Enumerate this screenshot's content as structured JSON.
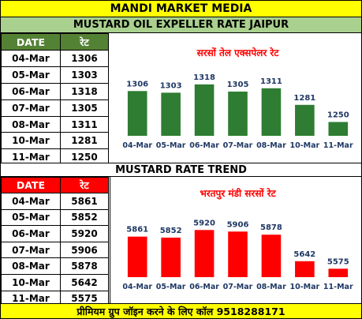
{
  "header": {
    "title": "MANDI MARKET MEDIA"
  },
  "section1": {
    "heading": "MUSTARD OIL EXPELLER RATE JAIPUR",
    "table": {
      "col_date": "DATE",
      "col_rate": "रेट",
      "rows": [
        {
          "date": "04-Mar",
          "rate": "1306"
        },
        {
          "date": "05-Mar",
          "rate": "1303"
        },
        {
          "date": "06-Mar",
          "rate": "1318"
        },
        {
          "date": "07-Mar",
          "rate": "1305"
        },
        {
          "date": "08-Mar",
          "rate": "1311"
        },
        {
          "date": "10-Mar",
          "rate": "1281"
        },
        {
          "date": "11-Mar",
          "rate": "1250"
        }
      ]
    }
  },
  "section2": {
    "heading": "MUSTARD RATE TREND",
    "table": {
      "col_date": "DATE",
      "col_rate": "रेट",
      "rows": [
        {
          "date": "04-Mar",
          "rate": "5861"
        },
        {
          "date": "05-Mar",
          "rate": "5852"
        },
        {
          "date": "06-Mar",
          "rate": "5920"
        },
        {
          "date": "07-Mar",
          "rate": "5906"
        },
        {
          "date": "08-Mar",
          "rate": "5878"
        },
        {
          "date": "10-Mar",
          "rate": "5642"
        },
        {
          "date": "11-Mar",
          "rate": "5575"
        }
      ]
    }
  },
  "footer": {
    "text": "प्रीमियम ग्रुप जॉइन करने के लिए कॉल 9518288171"
  },
  "chart_data": [
    {
      "type": "bar",
      "title": "सरसों तेल एक्सपेलर रेट",
      "categories": [
        "04-Mar",
        "05-Mar",
        "06-Mar",
        "07-Mar",
        "08-Mar",
        "10-Mar",
        "11-Mar"
      ],
      "values": [
        1306,
        1303,
        1318,
        1305,
        1311,
        1281,
        1250
      ],
      "bar_color": "#2e7d32",
      "title_color": "#ff0000",
      "data_labels": true,
      "grid": false,
      "ylim": [
        1225,
        1325
      ]
    },
    {
      "type": "bar",
      "title": "भरतपुर मंडी सरसों रेट",
      "categories": [
        "04-Mar",
        "05-Mar",
        "06-Mar",
        "07-Mar",
        "08-Mar",
        "10-Mar",
        "11-Mar"
      ],
      "values": [
        5861,
        5852,
        5920,
        5906,
        5878,
        5642,
        5575
      ],
      "bar_color": "#ff0000",
      "title_color": "#ff0000",
      "data_labels": true,
      "grid": false,
      "ylim": [
        5500,
        5950
      ]
    }
  ]
}
